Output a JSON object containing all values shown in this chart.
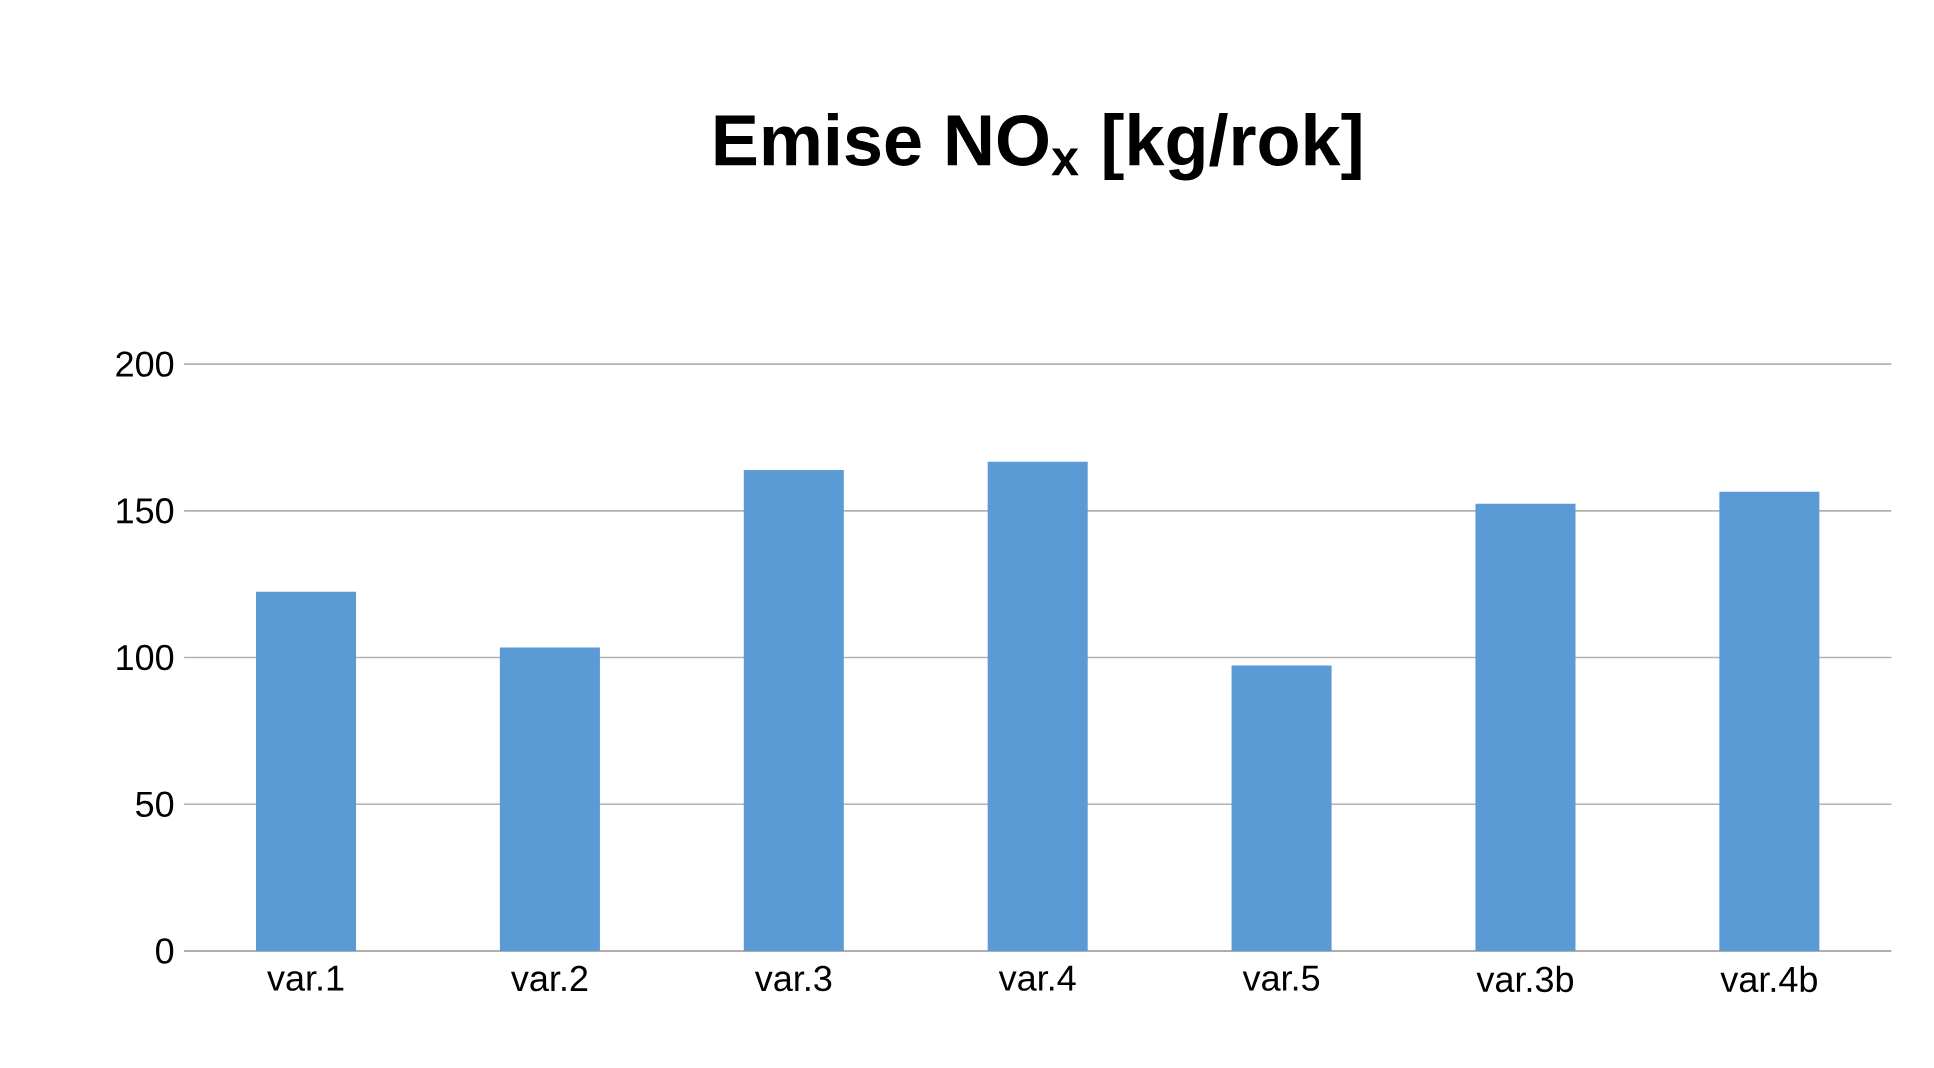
{
  "chart_data": {
    "type": "bar",
    "title": "Emise NO$_{x}$ [kg/rok]",
    "categories": [
      "var.1",
      "var.2",
      "var.3",
      "var.4",
      "var.5",
      "var.3b",
      "var.4b"
    ],
    "values": [
      122.4,
      103.4,
      163.9,
      166.7,
      97.3,
      152.4,
      156.5
    ],
    "color": "#5b9bd5",
    "ylim": [
      0,
      200
    ],
    "yticks": [
      0,
      50,
      100,
      150,
      200
    ],
    "grid": "y"
  }
}
